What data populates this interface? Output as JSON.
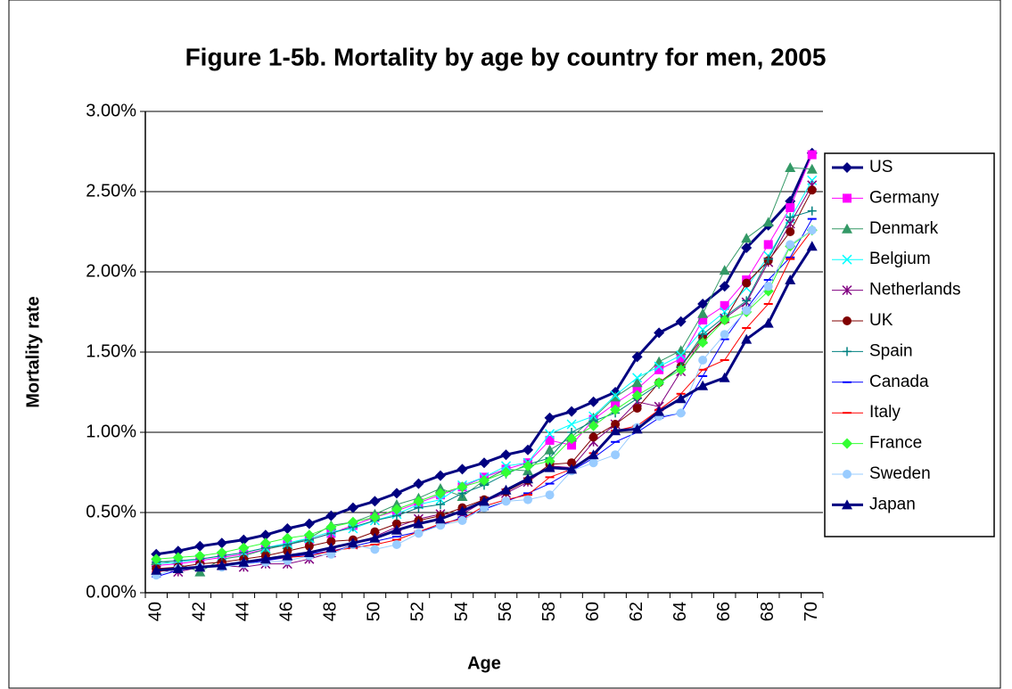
{
  "chart_data": {
    "type": "line",
    "title": "Figure 1-5b.  Mortality by age by country for men, 2005",
    "y_label": "Mortality rate",
    "x_label": "Age",
    "categories": [
      "40",
      null,
      "42",
      null,
      "44",
      null,
      "46",
      null,
      "48",
      null,
      "50",
      null,
      "52",
      null,
      "54",
      null,
      "56",
      null,
      "58",
      null,
      "60",
      null,
      "62",
      null,
      "64",
      null,
      "66",
      null,
      "68",
      null,
      "70"
    ],
    "ylim": [
      0,
      3
    ],
    "yticks": [
      {
        "value": 0,
        "label": "0.00%"
      },
      {
        "value": 0.5,
        "label": "0.50%"
      },
      {
        "value": 1,
        "label": "1.00%"
      },
      {
        "value": 1.5,
        "label": "1.50%"
      },
      {
        "value": 2,
        "label": "2.00%"
      },
      {
        "value": 2.5,
        "label": "2.50%"
      },
      {
        "value": 3,
        "label": "3.00%"
      }
    ],
    "grid": true,
    "legend": "right",
    "series": [
      {
        "name": "US",
        "color": "#000080",
        "marker": "diamond",
        "line_width": 3,
        "values": [
          0.24,
          0.26,
          0.29,
          0.31,
          0.33,
          0.36,
          0.4,
          0.43,
          0.48,
          0.53,
          0.57,
          0.62,
          0.68,
          0.73,
          0.77,
          0.81,
          0.86,
          0.89,
          1.09,
          1.13,
          1.19,
          1.25,
          1.47,
          1.62,
          1.69,
          1.8,
          1.91,
          2.15,
          2.29,
          2.44,
          2.74
        ]
      },
      {
        "name": "Germany",
        "color": "#ff00ff",
        "marker": "square",
        "line_width": 1,
        "values": [
          0.17,
          0.18,
          0.2,
          0.22,
          0.24,
          0.27,
          0.3,
          0.33,
          0.37,
          0.42,
          0.47,
          0.51,
          0.56,
          0.61,
          0.66,
          0.72,
          0.77,
          0.81,
          0.95,
          0.92,
          1.08,
          1.18,
          1.27,
          1.39,
          1.46,
          1.7,
          1.79,
          1.95,
          2.17,
          2.4,
          2.73
        ]
      },
      {
        "name": "Denmark",
        "color": "#339966",
        "marker": "triangle",
        "line_width": 1,
        "values": [
          0.2,
          0.18,
          0.13,
          0.21,
          0.23,
          0.27,
          0.3,
          0.34,
          0.42,
          0.44,
          0.49,
          0.55,
          0.59,
          0.65,
          0.6,
          0.7,
          0.77,
          0.76,
          0.89,
          0.97,
          1.09,
          1.22,
          1.31,
          1.44,
          1.51,
          1.74,
          2.01,
          2.21,
          2.31,
          2.65,
          2.64
        ]
      },
      {
        "name": "Belgium",
        "color": "#00ffff",
        "marker": "x",
        "line_width": 1,
        "values": [
          0.18,
          0.19,
          0.21,
          0.23,
          0.25,
          0.28,
          0.31,
          0.34,
          0.38,
          0.4,
          0.45,
          0.49,
          0.55,
          0.58,
          0.67,
          0.72,
          0.79,
          0.81,
          0.99,
          1.05,
          1.1,
          1.23,
          1.34,
          1.41,
          1.48,
          1.64,
          1.75,
          1.9,
          2.1,
          2.33,
          2.57
        ]
      },
      {
        "name": "Netherlands",
        "color": "#800080",
        "marker": "asterisk",
        "line_width": 1,
        "values": [
          0.14,
          0.13,
          0.16,
          0.17,
          0.16,
          0.18,
          0.18,
          0.21,
          0.25,
          0.3,
          0.35,
          0.41,
          0.46,
          0.49,
          0.49,
          0.57,
          0.62,
          0.69,
          0.79,
          0.78,
          0.94,
          1.05,
          1.19,
          1.16,
          1.38,
          1.58,
          1.71,
          1.81,
          2.06,
          2.3,
          2.54
        ]
      },
      {
        "name": "UK",
        "color": "#800000",
        "marker": "circle",
        "line_width": 1,
        "values": [
          0.15,
          0.16,
          0.18,
          0.19,
          0.21,
          0.23,
          0.26,
          0.29,
          0.32,
          0.33,
          0.38,
          0.43,
          0.45,
          0.48,
          0.53,
          0.58,
          0.63,
          0.7,
          0.8,
          0.81,
          0.97,
          1.05,
          1.15,
          1.31,
          1.41,
          1.59,
          1.7,
          1.93,
          2.07,
          2.25,
          2.51
        ]
      },
      {
        "name": "Spain",
        "color": "#008080",
        "marker": "plus",
        "line_width": 1,
        "values": [
          0.19,
          0.2,
          0.21,
          0.23,
          0.25,
          0.28,
          0.3,
          0.33,
          0.37,
          0.41,
          0.45,
          0.48,
          0.53,
          0.55,
          0.62,
          0.67,
          0.74,
          0.8,
          0.84,
          1.0,
          1.07,
          1.12,
          1.21,
          1.3,
          1.41,
          1.61,
          1.72,
          1.82,
          2.08,
          2.34,
          2.38
        ]
      },
      {
        "name": "Canada",
        "color": "#0000ff",
        "marker": "dash",
        "line_width": 1,
        "values": [
          0.1,
          0.14,
          0.16,
          0.17,
          0.18,
          0.2,
          0.22,
          0.24,
          0.26,
          0.29,
          0.32,
          0.35,
          0.38,
          0.42,
          0.47,
          0.52,
          0.57,
          0.62,
          0.68,
          0.76,
          0.84,
          0.94,
          1.0,
          1.09,
          1.12,
          1.35,
          1.58,
          1.77,
          1.95,
          2.09,
          2.33
        ]
      },
      {
        "name": "Italy",
        "color": "#ff0000",
        "marker": "dash",
        "line_width": 1,
        "values": [
          0.13,
          0.15,
          0.16,
          0.18,
          0.19,
          0.21,
          0.22,
          0.23,
          0.26,
          0.28,
          0.3,
          0.33,
          0.38,
          0.43,
          0.46,
          0.54,
          0.58,
          0.61,
          0.72,
          0.77,
          0.87,
          1.01,
          1.04,
          1.14,
          1.24,
          1.39,
          1.45,
          1.65,
          1.8,
          2.08,
          2.26
        ]
      },
      {
        "name": "France",
        "color": "#33ff33",
        "marker": "diamond",
        "line_width": 1,
        "values": [
          0.21,
          0.22,
          0.23,
          0.25,
          0.28,
          0.31,
          0.34,
          0.36,
          0.41,
          0.44,
          0.47,
          0.52,
          0.57,
          0.62,
          0.66,
          0.7,
          0.75,
          0.79,
          0.82,
          0.96,
          1.04,
          1.14,
          1.23,
          1.31,
          1.39,
          1.56,
          1.7,
          1.75,
          1.88,
          2.16,
          2.26
        ]
      },
      {
        "name": "Sweden",
        "color": "#99ccff",
        "marker": "circle",
        "line_width": 1,
        "values": [
          0.11,
          0.15,
          0.16,
          0.16,
          0.18,
          0.19,
          0.2,
          0.23,
          0.24,
          0.3,
          0.27,
          0.3,
          0.37,
          0.42,
          0.45,
          0.53,
          0.57,
          0.58,
          0.61,
          0.76,
          0.81,
          0.86,
          1.03,
          1.1,
          1.12,
          1.45,
          1.61,
          1.76,
          1.91,
          2.17,
          2.26
        ]
      },
      {
        "name": "Japan",
        "color": "#000080",
        "marker": "triangle",
        "line_width": 3,
        "values": [
          0.14,
          0.15,
          0.16,
          0.17,
          0.19,
          0.21,
          0.23,
          0.25,
          0.28,
          0.31,
          0.34,
          0.39,
          0.43,
          0.46,
          0.51,
          0.57,
          0.64,
          0.71,
          0.78,
          0.77,
          0.86,
          1.01,
          1.02,
          1.13,
          1.21,
          1.29,
          1.34,
          1.58,
          1.68,
          1.95,
          2.16
        ]
      }
    ]
  }
}
